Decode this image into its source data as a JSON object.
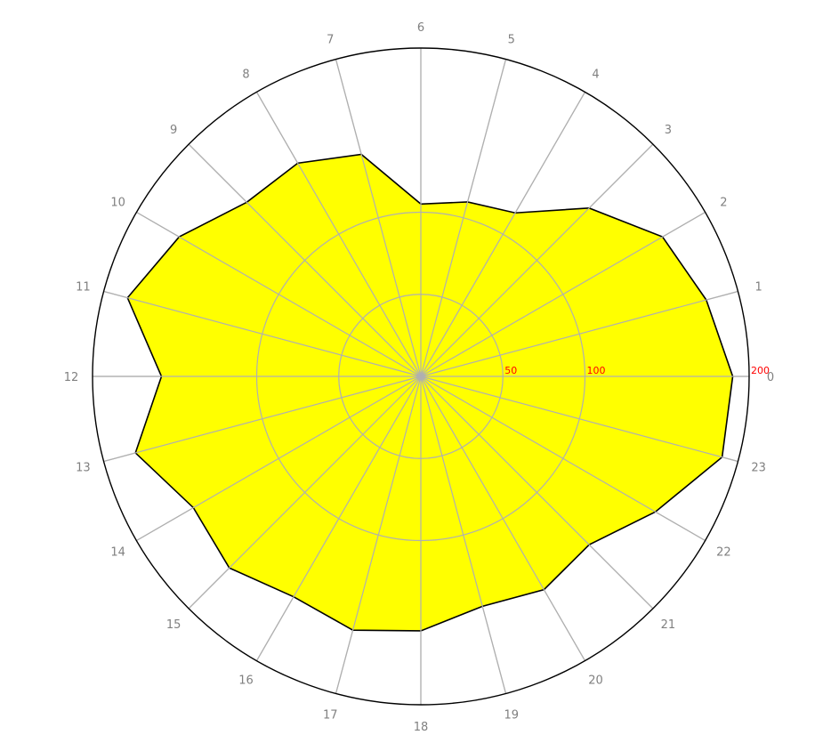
{
  "chart_data": {
    "type": "radar",
    "categories": [
      "0",
      "1",
      "2",
      "3",
      "4",
      "5",
      "6",
      "7",
      "8",
      "9",
      "10",
      "11",
      "12",
      "13",
      "14",
      "15",
      "16",
      "17",
      "18",
      "19",
      "20",
      "21",
      "22",
      "23"
    ],
    "series": [
      {
        "values": [
          190,
          180,
          170,
          145,
          115,
          110,
          105,
          140,
          150,
          150,
          170,
          185,
          158,
          180,
          160,
          165,
          155,
          160,
          155,
          145,
          150,
          145,
          165,
          190
        ]
      }
    ],
    "radial_ticks": [
      "50",
      "100",
      "200"
    ],
    "rmax": 200,
    "fill_color": "#ffff00",
    "line_color": "#000000",
    "grid_color": "#b0b0b0",
    "tick_label_color": "#808080",
    "radial_label_color": "#ff0000",
    "grid": true
  }
}
